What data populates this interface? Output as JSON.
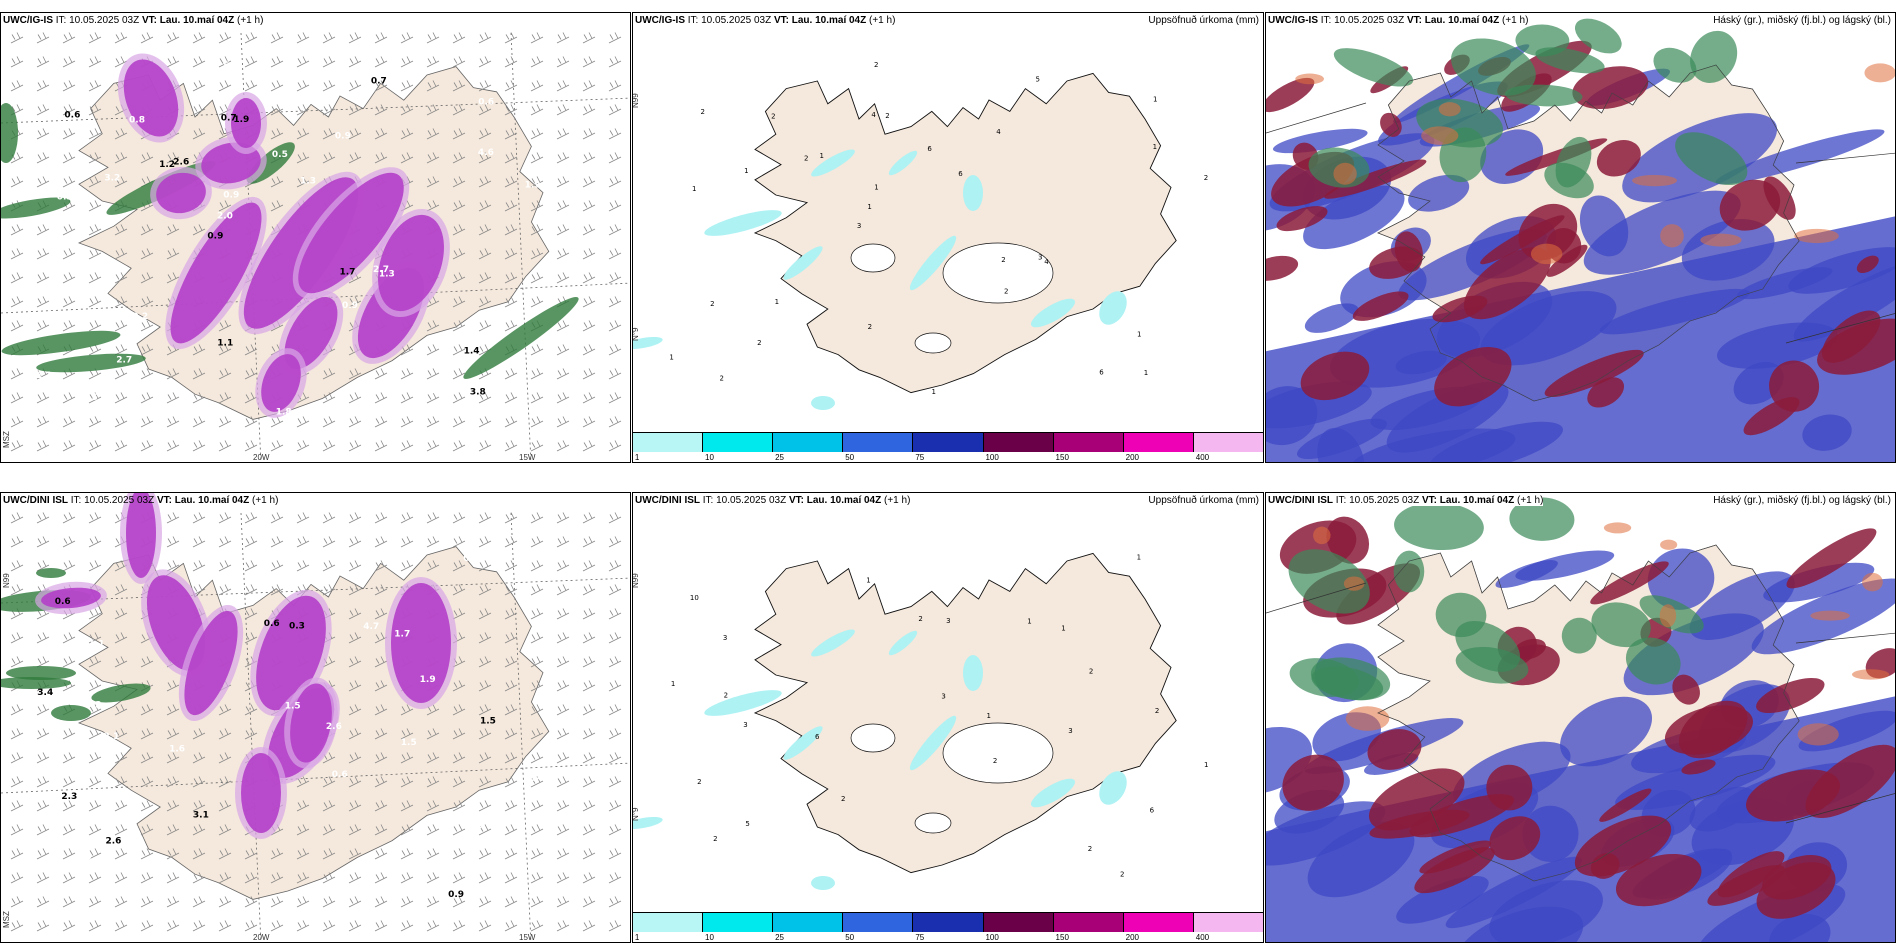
{
  "panels": {
    "r1c1": {
      "model": "UWC/IG-IS",
      "it": "IT: 10.05.2025 03Z",
      "vt_label": "VT:",
      "vt": "Lau. 10.maí 04Z",
      "lead": "(+1 h)",
      "lon_labels": [
        "20W",
        "15W"
      ],
      "lat_label": "N99",
      "edge_label": "MSZ",
      "values": [
        "3.8",
        "0.5",
        "0.6",
        "0.9",
        "0.9",
        "0.5",
        "0.7",
        "0.5",
        "2.7",
        "2.6",
        "2.1",
        "2.7",
        "1.9",
        "1.3",
        "1.3",
        "0.6",
        "5.8",
        "1.9",
        "1.7",
        "4.6",
        "2.0",
        "1.1",
        "0.9",
        "0.8",
        "0.7",
        "0.2",
        "0.9",
        "1.4",
        "2.7",
        "1.8",
        "1.2",
        "3.2",
        "0.9"
      ]
    },
    "r1c2": {
      "model": "UWC/IG-IS",
      "it": "IT: 10.05.2025 03Z",
      "vt_label": "VT:",
      "vt": "Lau. 10.maí 04Z",
      "lead": "(+1 h)",
      "right_title": "Uppsöfnuð úrkoma (mm)",
      "lat_label": "N99",
      "edge_label": "N°9",
      "values": [
        "1",
        "1",
        "1",
        "3",
        "4",
        "2",
        "4",
        "6",
        "2",
        "1",
        "1",
        "2",
        "2",
        "6",
        "4",
        "2",
        "2",
        "2",
        "2",
        "1",
        "1",
        "2",
        "1",
        "2",
        "5",
        "1",
        "6",
        "1",
        "3",
        "1",
        "2",
        "1",
        "2"
      ]
    },
    "r1c3": {
      "model": "UWC/IG-IS",
      "it": "IT: 10.05.2025 03Z",
      "vt_label": "VT:",
      "vt": "Lau. 10.maí 04Z",
      "lead": "(+1 h)",
      "right_title": "Háský (gr.), miðský (fj.bl.) og lágský (bl.)"
    },
    "r2c1": {
      "model": "UWC/DINI ISL",
      "it": "IT: 10.05.2025 03Z",
      "vt_label": "VT:",
      "vt": "Lau. 10.maí 04Z",
      "lead": "(+1 h)",
      "lon_labels": [
        "20W",
        "15W"
      ],
      "lat_label": "N99",
      "edge_label": "MSZ",
      "values": [
        "0.9",
        "2.1",
        "0.6",
        "0.6",
        "4",
        "-1.1",
        "2.6",
        "1.6",
        "1.7",
        "0.6",
        "4.7",
        "-1.8",
        "3.1",
        "2.8",
        "2.6",
        "2.3",
        "1.5",
        "1.5",
        "3.4",
        "3.9",
        "0.9",
        "0.3",
        "1.9",
        "1.7",
        "1.5",
        "3.2"
      ]
    },
    "r2c2": {
      "model": "UWC/DINI ISL",
      "it": "IT: 10.05.2025 03Z",
      "vt_label": "VT:",
      "vt": "Lau. 10.maí 04Z",
      "lead": "(+1 h)",
      "right_title": "Uppsöfnuð úrkoma (mm)",
      "lat_label": "N99",
      "edge_label": "N°9",
      "values": [
        "2",
        "3",
        "2",
        "10",
        "6",
        "3",
        "5",
        "6",
        "1",
        "2",
        "1",
        "2",
        "2",
        "1",
        "1",
        "2",
        "3",
        "3",
        "1",
        "2",
        "1",
        "3",
        "2",
        "1",
        "2",
        "2"
      ]
    },
    "r2c3": {
      "model": "UWC/DINI ISL",
      "it": "IT: 10.05.2025 03Z",
      "vt_label": "VT:",
      "vt": "Lau. 10.maí 04Z",
      "lead": "(+1 h)",
      "right_title": "Háský (gr.), miðský (fj.bl.) og lágský (bl.)"
    }
  },
  "colorbar": {
    "ticks": [
      "1",
      "10",
      "25",
      "50",
      "75",
      "100",
      "150",
      "200",
      "400"
    ],
    "colors": [
      "#b8f6f6",
      "#00e9ec",
      "#00c2e8",
      "#2f66e0",
      "#1a2fb0",
      "#6a0048",
      "#a80077",
      "#ee00b5",
      "#f5b7ef"
    ]
  },
  "colors": {
    "land": "#f5e8dc",
    "purple": "#b43fc8",
    "green": "#2f7a3c",
    "cyan": "#aef2f4",
    "cloud_high": "#3a8a5a",
    "cloud_mid": "#8b1b3a",
    "cloud_low": "#3e48c4"
  }
}
